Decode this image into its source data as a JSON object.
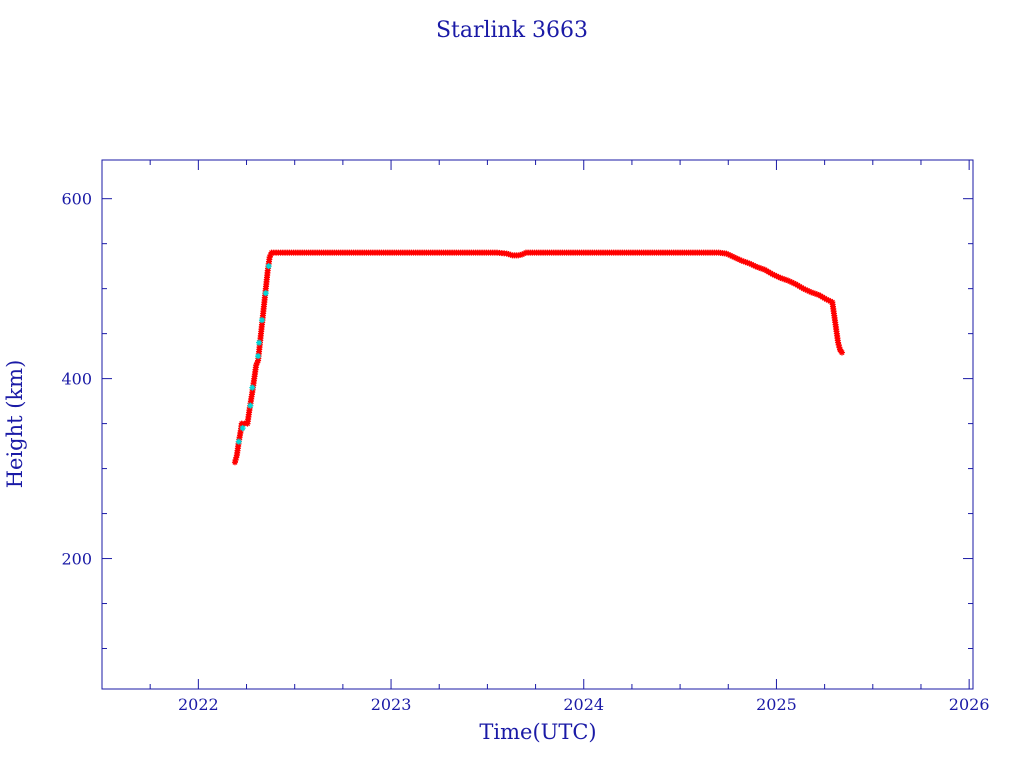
{
  "chart_data": {
    "type": "scatter",
    "title": "Starlink 3663",
    "xlabel": "Time(UTC)",
    "ylabel": "Height (km)",
    "xlim": [
      2021.5,
      2026.02
    ],
    "ylim": [
      55,
      643
    ],
    "xticks": [
      2022,
      2023,
      2024,
      2025,
      2026
    ],
    "yticks": [
      200,
      400,
      600
    ],
    "xminor_step": 0.25,
    "yminor_step": 50,
    "colors": {
      "axis": "#1a1aa6",
      "primary": "#ff0000",
      "secondary": "#00d8d8"
    },
    "series": [
      {
        "color": "#ff0000",
        "points": [
          [
            2022.19,
            307
          ],
          [
            2022.2,
            315
          ],
          [
            2022.21,
            330
          ],
          [
            2022.22,
            342
          ],
          [
            2022.225,
            350
          ],
          [
            2022.24,
            350
          ],
          [
            2022.255,
            350
          ],
          [
            2022.265,
            365
          ],
          [
            2022.28,
            385
          ],
          [
            2022.29,
            400
          ],
          [
            2022.3,
            415
          ],
          [
            2022.31,
            420
          ],
          [
            2022.32,
            440
          ],
          [
            2022.33,
            460
          ],
          [
            2022.34,
            480
          ],
          [
            2022.35,
            500
          ],
          [
            2022.36,
            520
          ],
          [
            2022.37,
            535
          ],
          [
            2022.38,
            540
          ],
          [
            2022.45,
            540
          ],
          [
            2022.55,
            540
          ],
          [
            2022.65,
            540
          ],
          [
            2022.75,
            540
          ],
          [
            2022.85,
            540
          ],
          [
            2022.95,
            540
          ],
          [
            2023.05,
            540
          ],
          [
            2023.15,
            540
          ],
          [
            2023.25,
            540
          ],
          [
            2023.35,
            540
          ],
          [
            2023.45,
            540
          ],
          [
            2023.55,
            540
          ],
          [
            2023.6,
            539
          ],
          [
            2023.63,
            537
          ],
          [
            2023.66,
            537
          ],
          [
            2023.68,
            538
          ],
          [
            2023.7,
            540
          ],
          [
            2023.8,
            540
          ],
          [
            2023.9,
            540
          ],
          [
            2024.0,
            540
          ],
          [
            2024.1,
            540
          ],
          [
            2024.2,
            540
          ],
          [
            2024.3,
            540
          ],
          [
            2024.4,
            540
          ],
          [
            2024.5,
            540
          ],
          [
            2024.6,
            540
          ],
          [
            2024.7,
            540
          ],
          [
            2024.74,
            539
          ],
          [
            2024.78,
            535
          ],
          [
            2024.82,
            531
          ],
          [
            2024.86,
            528
          ],
          [
            2024.9,
            524
          ],
          [
            2024.94,
            521
          ],
          [
            2024.98,
            516
          ],
          [
            2025.02,
            512
          ],
          [
            2025.06,
            509
          ],
          [
            2025.1,
            505
          ],
          [
            2025.14,
            500
          ],
          [
            2025.18,
            496
          ],
          [
            2025.22,
            493
          ],
          [
            2025.26,
            488
          ],
          [
            2025.29,
            485
          ],
          [
            2025.3,
            470
          ],
          [
            2025.31,
            455
          ],
          [
            2025.32,
            440
          ],
          [
            2025.33,
            432
          ],
          [
            2025.34,
            429
          ]
        ]
      },
      {
        "color": "#00d8d8",
        "points": [
          [
            2022.21,
            330
          ],
          [
            2022.23,
            345
          ],
          [
            2022.27,
            370
          ],
          [
            2022.28,
            390
          ],
          [
            2022.31,
            425
          ],
          [
            2022.315,
            440
          ],
          [
            2022.33,
            465
          ],
          [
            2022.35,
            495
          ],
          [
            2022.365,
            525
          ]
        ]
      }
    ]
  }
}
